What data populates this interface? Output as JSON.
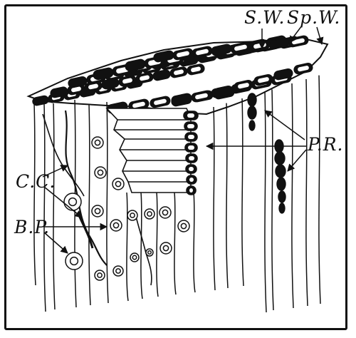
{
  "labels": {
    "sw": "S.W.",
    "spw": "Sp.W.",
    "pr": "P.R.",
    "cc": "C.C.",
    "bp": "B.P."
  },
  "colors": {
    "ink": "#111111",
    "paper": "#ffffff"
  }
}
